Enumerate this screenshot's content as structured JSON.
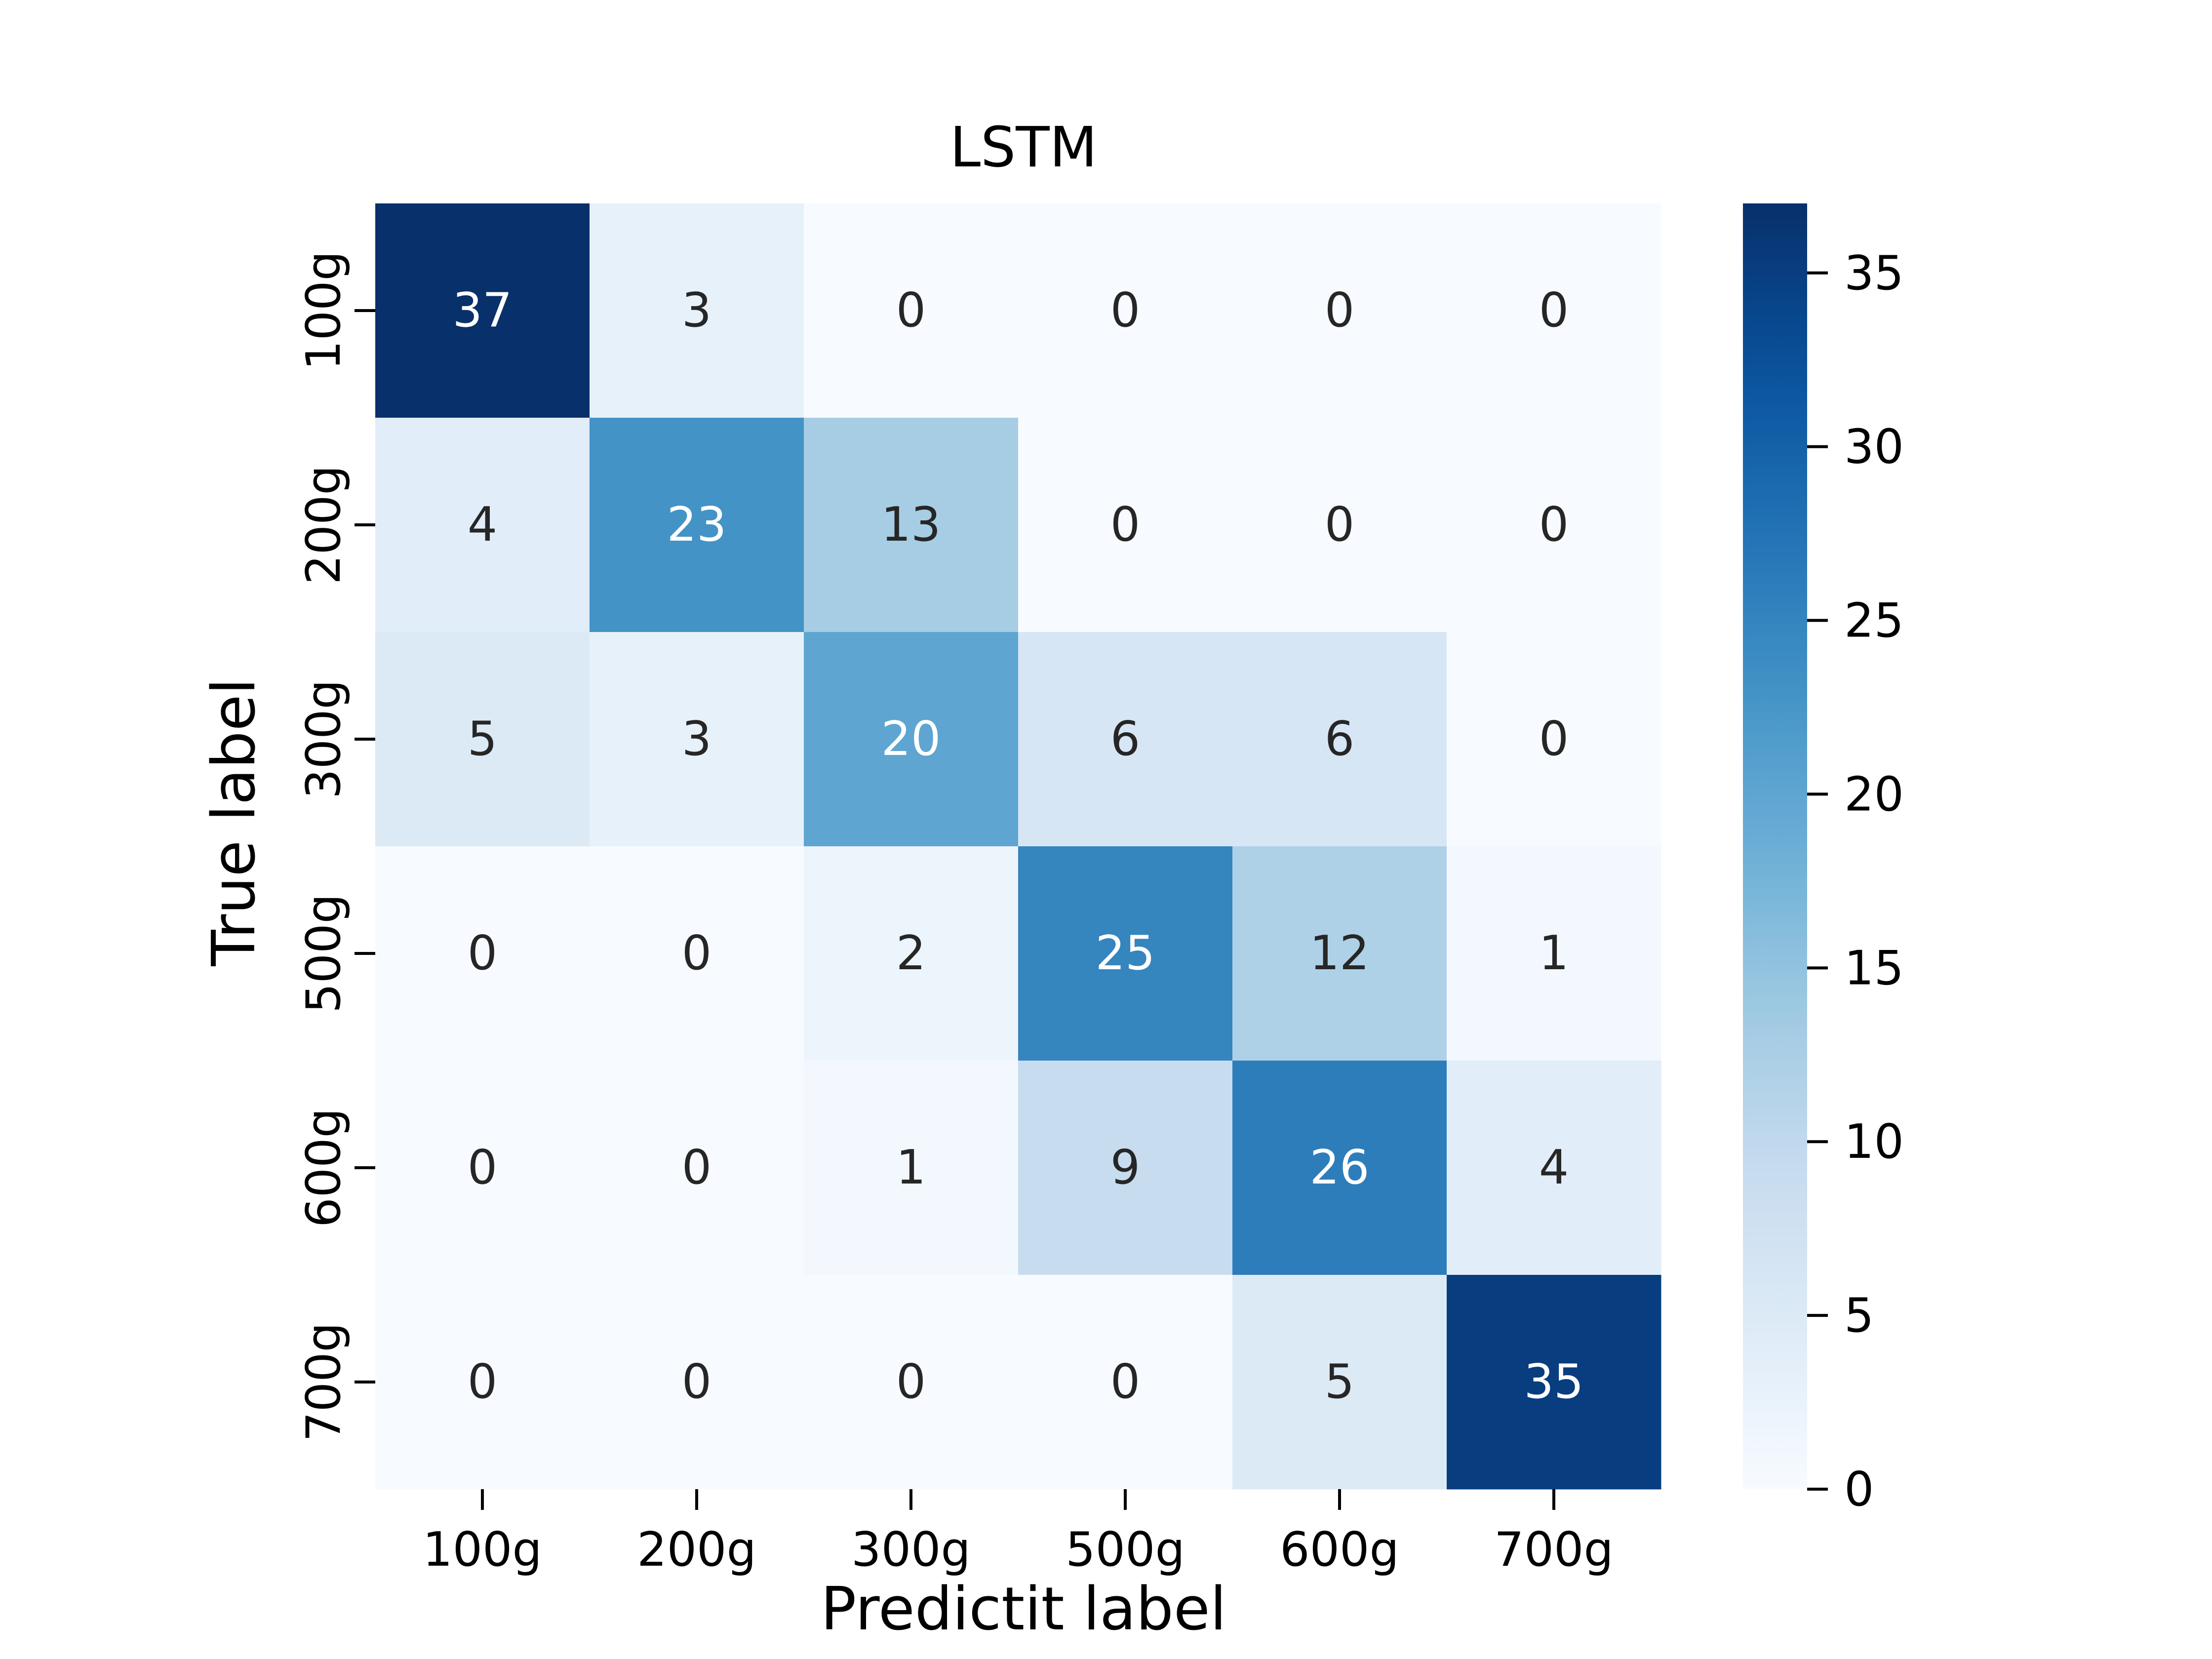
{
  "chart_data": {
    "type": "heatmap",
    "title": "LSTM",
    "xlabel": "Predictit label",
    "ylabel": "True label",
    "x_categories": [
      "100g",
      "200g",
      "300g",
      "500g",
      "600g",
      "700g"
    ],
    "y_categories": [
      "100g",
      "200g",
      "300g",
      "500g",
      "600g",
      "700g"
    ],
    "matrix": [
      [
        37,
        3,
        0,
        0,
        0,
        0
      ],
      [
        4,
        23,
        13,
        0,
        0,
        0
      ],
      [
        5,
        3,
        20,
        6,
        6,
        0
      ],
      [
        0,
        0,
        2,
        25,
        12,
        1
      ],
      [
        0,
        0,
        1,
        9,
        26,
        4
      ],
      [
        0,
        0,
        0,
        0,
        5,
        35
      ]
    ],
    "colormap": "Blues",
    "vmin": 0,
    "vmax": 37,
    "colorbar_ticks": [
      0,
      5,
      10,
      15,
      20,
      25,
      30,
      35
    ],
    "colors": {
      "low": "#f7fbff",
      "high": "#08306b",
      "text_dark": "#262626",
      "text_light": "#ffffff"
    }
  }
}
